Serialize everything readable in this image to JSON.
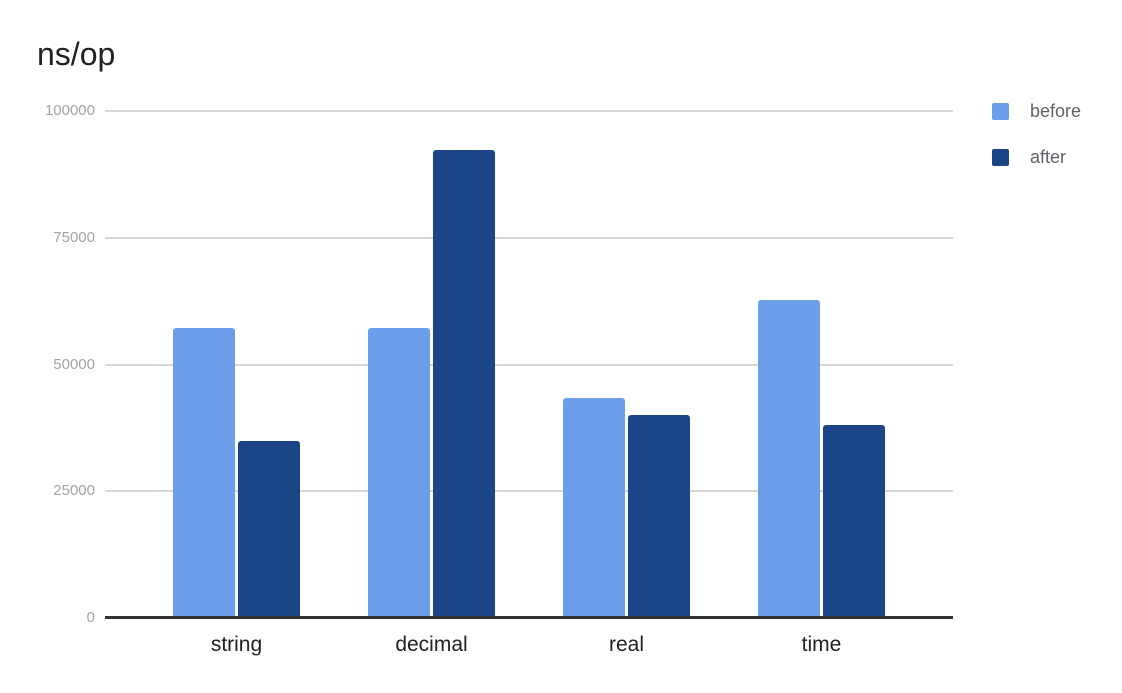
{
  "chart_data": {
    "type": "bar",
    "title": "ns/op",
    "categories": [
      "string",
      "decimal",
      "real",
      "time"
    ],
    "series": [
      {
        "name": "before",
        "color": "#6d9eeb",
        "values": [
          57300,
          57300,
          43300,
          62800
        ]
      },
      {
        "name": "after",
        "color": "#1c4587",
        "values": [
          34900,
          92300,
          40000,
          38000
        ]
      }
    ],
    "ylim": [
      0,
      100000
    ],
    "yticks": [
      0,
      25000,
      50000,
      75000,
      100000
    ],
    "ytick_labels": [
      "0",
      "25000",
      "50000",
      "75000",
      "100000"
    ],
    "grid": true,
    "legend_position": "top-right",
    "xlabel": "",
    "ylabel": ""
  }
}
